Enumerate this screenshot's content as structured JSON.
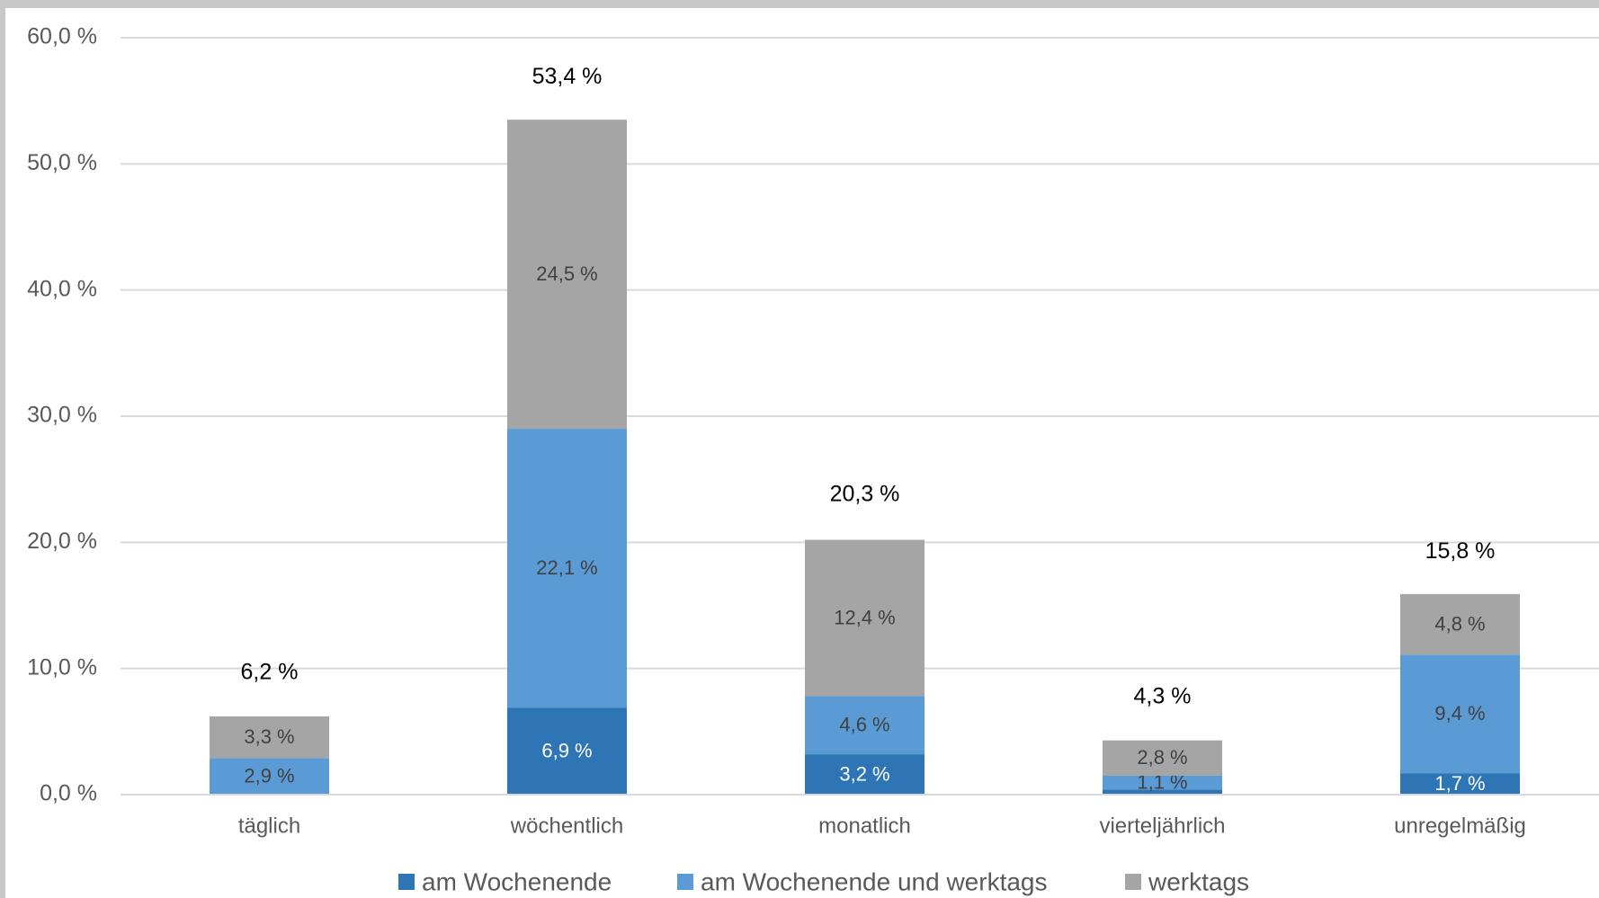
{
  "chart_data": {
    "type": "stacked_bar",
    "categories": [
      "täglich",
      "wöchentlich",
      "monatlich",
      "vierteljährlich",
      "unregelmäßig"
    ],
    "series": [
      {
        "name": "am Wochenende",
        "color": "#2e75b6",
        "values": [
          0,
          6.9,
          3.2,
          0.4,
          1.7
        ],
        "value_labels": [
          null,
          "6,9 %",
          "3,2 %",
          null,
          "1,7 %"
        ]
      },
      {
        "name": "am Wochenende und werktags",
        "color": "#5b9bd5",
        "values": [
          2.9,
          22.1,
          4.6,
          1.1,
          9.4
        ],
        "value_labels": [
          "2,9 %",
          "22,1 %",
          "4,6 %",
          "1,1 %",
          "9,4 %"
        ]
      },
      {
        "name": "werktags",
        "color": "#a5a5a5",
        "values": [
          3.3,
          24.5,
          12.4,
          2.8,
          4.8
        ],
        "value_labels": [
          "3,3 %",
          "24,5 %",
          "12,4 %",
          "2,8 %",
          "4,8 %"
        ]
      }
    ],
    "totals": [
      6.2,
      53.4,
      20.3,
      4.3,
      15.8
    ],
    "total_labels": [
      "6,2 %",
      "53,4 %",
      "20,3 %",
      "4,3 %",
      "15,8 %"
    ],
    "ylim": [
      0,
      60
    ],
    "yticks": [
      {
        "value": 0,
        "label": "0,0 %"
      },
      {
        "value": 10,
        "label": "10,0 %"
      },
      {
        "value": 20,
        "label": "20,0 %"
      },
      {
        "value": 30,
        "label": "30,0 %"
      },
      {
        "value": 40,
        "label": "40,0 %"
      },
      {
        "value": 50,
        "label": "50,0 %"
      },
      {
        "value": 60,
        "label": "60,0 %"
      }
    ],
    "grid": true,
    "legend": "bottom"
  }
}
